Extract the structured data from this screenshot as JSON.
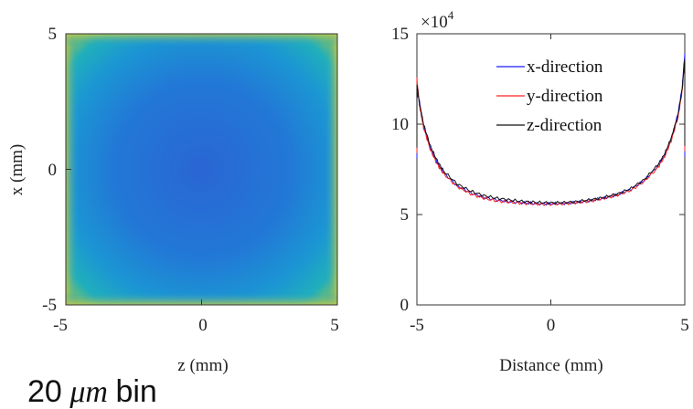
{
  "chart_data": [
    {
      "type": "heatmap",
      "title": "",
      "xlabel": "z (mm)",
      "ylabel": "x (mm)",
      "xlim": [
        -5,
        5
      ],
      "ylim": [
        -5,
        5
      ],
      "xticks": [
        "-5",
        "0",
        "5"
      ],
      "yticks": [
        "5",
        "0",
        "-5"
      ],
      "colormap": [
        "#2b6ed3",
        "#1f8fd8",
        "#16a9c4",
        "#34b78f",
        "#9cc25a",
        "#e8c73b",
        "#f6d23c"
      ],
      "description_of_values": "low in center, rising toward edges and corners"
    },
    {
      "type": "line",
      "xlabel": "Distance (mm)",
      "ylabel": "",
      "xlim": [
        -5,
        5
      ],
      "ylim": [
        0,
        15
      ],
      "y_scale_label": "×10",
      "y_scale_exponent": "4",
      "xticks": [
        "-5",
        "0",
        "5"
      ],
      "yticks": [
        "0",
        "5",
        "10",
        "15"
      ],
      "legend_position": "top-right",
      "x": [
        -5,
        -4.9,
        -4.75,
        -4.5,
        -4.25,
        -4,
        -3.5,
        -3,
        -2.5,
        -2,
        -1.5,
        -1,
        -0.5,
        0,
        0.5,
        1,
        1.5,
        2,
        2.5,
        3,
        3.5,
        4,
        4.25,
        4.5,
        4.75,
        4.9,
        5
      ],
      "series": [
        {
          "name": "x-direction",
          "color": "#1a1aff",
          "values": [
            11.8,
            11.2,
            9.9,
            8.7,
            7.9,
            7.3,
            6.6,
            6.2,
            5.95,
            5.8,
            5.7,
            5.65,
            5.6,
            5.6,
            5.62,
            5.68,
            5.78,
            5.92,
            6.1,
            6.4,
            6.9,
            7.7,
            8.3,
            9.2,
            10.6,
            12.0,
            13.9
          ]
        },
        {
          "name": "y-direction",
          "color": "#ff2020",
          "values": [
            12.5,
            11.0,
            9.8,
            8.6,
            7.8,
            7.25,
            6.55,
            6.15,
            5.9,
            5.75,
            5.68,
            5.62,
            5.58,
            5.57,
            5.6,
            5.66,
            5.75,
            5.9,
            6.08,
            6.35,
            6.85,
            7.6,
            8.2,
            9.1,
            10.4,
            11.8,
            13.5
          ]
        },
        {
          "name": "z-direction",
          "color": "#111111",
          "values": [
            12.2,
            11.1,
            10.0,
            8.8,
            8.0,
            7.4,
            6.7,
            6.3,
            6.05,
            5.9,
            5.8,
            5.72,
            5.67,
            5.65,
            5.66,
            5.72,
            5.82,
            5.95,
            6.15,
            6.45,
            6.95,
            7.75,
            8.35,
            9.25,
            10.5,
            11.9,
            13.6
          ]
        }
      ]
    }
  ],
  "caption": {
    "number": "20",
    "unit": "μm",
    "word": "bin"
  }
}
